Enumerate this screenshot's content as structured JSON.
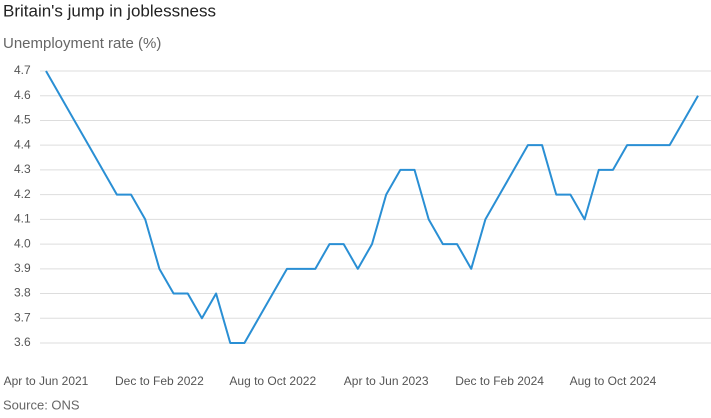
{
  "chart_data": {
    "type": "line",
    "title": "Britain's jump in joblessness",
    "subtitle": "Unemployment rate (%)",
    "source": "Source: ONS",
    "categories": [
      "Apr to Jun 2021",
      null,
      null,
      null,
      null,
      null,
      null,
      null,
      "Dec to Feb 2022",
      null,
      null,
      null,
      null,
      null,
      null,
      null,
      "Aug to Oct 2022",
      null,
      null,
      null,
      null,
      null,
      null,
      null,
      "Apr to Jun 2023",
      null,
      null,
      null,
      null,
      null,
      null,
      null,
      "Dec to Feb 2024",
      null,
      null,
      null,
      null,
      null,
      null,
      null,
      "Aug to Oct 2024",
      null,
      null,
      null,
      null,
      null,
      null
    ],
    "series": [
      {
        "name": "Unemployment rate",
        "color": "#2a8fd4",
        "values": [
          4.7,
          4.6,
          4.5,
          4.4,
          4.3,
          4.2,
          4.2,
          4.1,
          3.9,
          3.8,
          3.8,
          3.7,
          3.8,
          3.6,
          3.6,
          3.7,
          3.8,
          3.9,
          3.9,
          3.9,
          4.0,
          4.0,
          3.9,
          4.0,
          4.2,
          4.3,
          4.3,
          4.1,
          4.0,
          4.0,
          3.9,
          4.1,
          4.2,
          4.3,
          4.4,
          4.4,
          4.2,
          4.2,
          4.1,
          4.3,
          4.3,
          4.4,
          4.4,
          4.4,
          4.4,
          4.5,
          4.6
        ]
      }
    ],
    "ylim": [
      3.6,
      4.7
    ],
    "yticks": [
      3.6,
      3.7,
      3.8,
      3.9,
      {
        "value": 4,
        "label": "4.0"
      },
      4.1,
      4.2,
      4.3,
      4.4,
      4.5,
      4.6,
      4.7
    ],
    "grid": true
  }
}
